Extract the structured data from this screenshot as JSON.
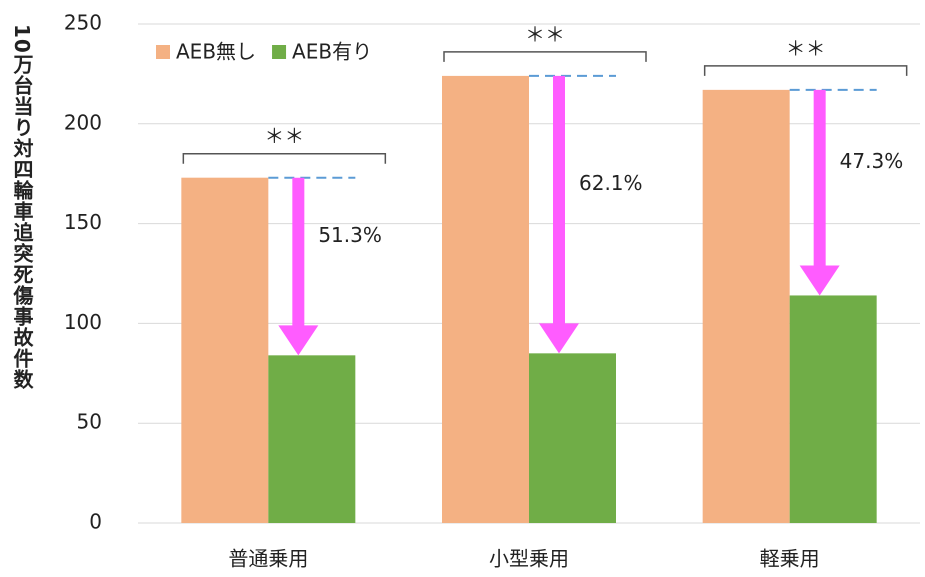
{
  "chart_data": {
    "type": "bar",
    "y_axis_label": "10万台当り対四輪車追突死傷事故件数",
    "categories": [
      "普通乗用",
      "小型乗用",
      "軽乗用"
    ],
    "series": [
      {
        "name": "AEB無し",
        "color": "#f4b183",
        "values": [
          173,
          224,
          217
        ]
      },
      {
        "name": "AEB有り",
        "color": "#70ad47",
        "values": [
          84,
          85,
          114
        ]
      }
    ],
    "significance": [
      "＊＊",
      "＊＊",
      "＊＊"
    ],
    "reduction_labels": [
      "51.3%",
      "62.1%",
      "47.3%"
    ],
    "ylim": [
      0,
      250
    ],
    "yticks": [
      0,
      50,
      100,
      150,
      200,
      250
    ],
    "grid": true,
    "legend": "top-left"
  }
}
